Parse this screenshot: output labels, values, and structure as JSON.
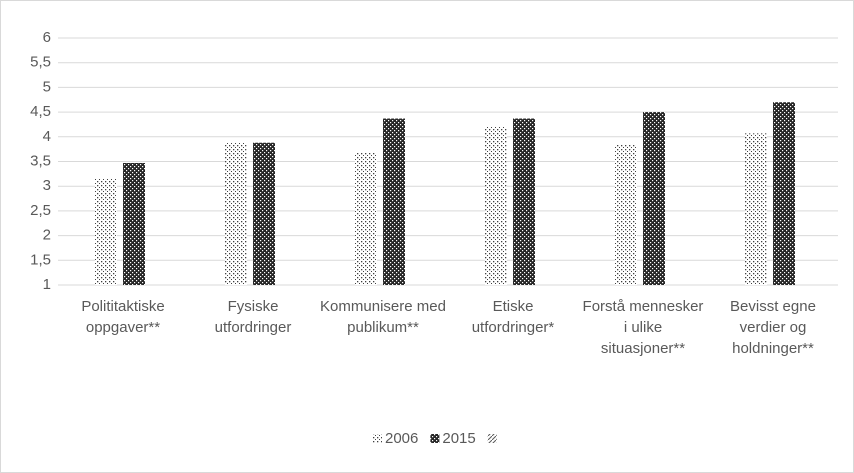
{
  "chart_data": {
    "type": "bar",
    "categories": [
      "Polititaktiske oppgaver**",
      "Fysiske utfordringer",
      "Kommunisere med publikum**",
      "Etiske utfordringer*",
      "Forstå mennesker i ulike situasjoner**",
      "Bevisst egne verdier og holdninger**"
    ],
    "series": [
      {
        "name": "2006",
        "color": "#404040",
        "pattern": "dots",
        "values": [
          3.15,
          3.88,
          3.68,
          4.2,
          3.85,
          4.07
        ]
      },
      {
        "name": "2015",
        "color": "#262626",
        "pattern": "check",
        "values": [
          3.47,
          3.88,
          4.37,
          4.37,
          4.5,
          4.7
        ]
      }
    ],
    "ylim": [
      1,
      6
    ],
    "yticks": [
      1,
      {
        "value": 1.5,
        "label": "1,5"
      },
      2,
      {
        "value": 2.5,
        "label": "2,5"
      },
      3,
      {
        "value": 3.5,
        "label": "3,5"
      },
      4,
      {
        "value": 4.5,
        "label": "4,5"
      },
      5,
      {
        "value": 5.5,
        "label": "5,5"
      },
      6
    ],
    "grid": true,
    "legend": "bottom"
  }
}
